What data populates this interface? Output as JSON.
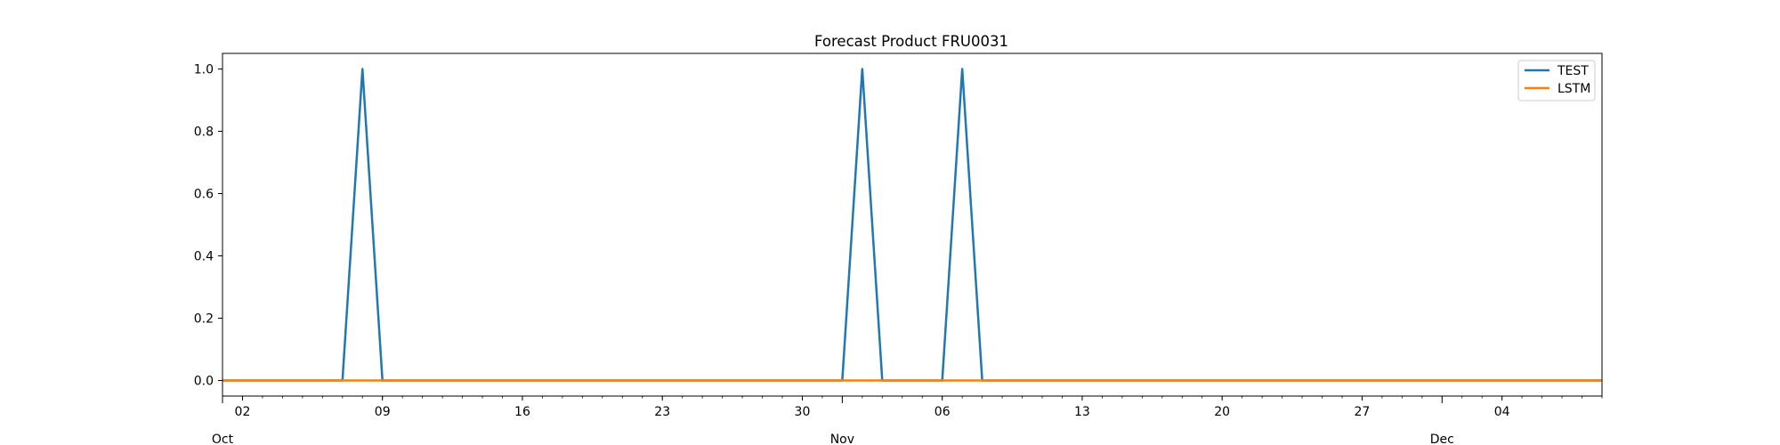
{
  "chart_data": {
    "type": "line",
    "title": "Forecast Product FRU0031",
    "xlabel": "",
    "ylabel": "",
    "x_start": "2023-10-01",
    "x_end": "2023-12-09",
    "ylim": [
      -0.05,
      1.05
    ],
    "y_ticks": [
      "0.0",
      "0.2",
      "0.4",
      "0.6",
      "0.8",
      "1.0"
    ],
    "x_major_ticks": [
      {
        "date": "2023-10-01",
        "label": "Oct"
      },
      {
        "date": "2023-11-01",
        "label": "Nov"
      },
      {
        "date": "2023-12-01",
        "label": "Dec"
      }
    ],
    "x_minor_ticks": [
      {
        "date": "2023-10-02",
        "label": "02"
      },
      {
        "date": "2023-10-09",
        "label": "09"
      },
      {
        "date": "2023-10-16",
        "label": "16"
      },
      {
        "date": "2023-10-23",
        "label": "23"
      },
      {
        "date": "2023-10-30",
        "label": "30"
      },
      {
        "date": "2023-11-06",
        "label": "06"
      },
      {
        "date": "2023-11-13",
        "label": "13"
      },
      {
        "date": "2023-11-20",
        "label": "20"
      },
      {
        "date": "2023-11-27",
        "label": "27"
      },
      {
        "date": "2023-12-04",
        "label": "04"
      }
    ],
    "legend_position": "top-right",
    "grid": false,
    "series": [
      {
        "name": "TEST",
        "color": "#1f77b4",
        "points": [
          [
            "2023-10-01",
            0
          ],
          [
            "2023-10-07",
            0
          ],
          [
            "2023-10-08",
            1
          ],
          [
            "2023-10-09",
            0
          ],
          [
            "2023-11-01",
            0
          ],
          [
            "2023-11-02",
            1
          ],
          [
            "2023-11-03",
            0
          ],
          [
            "2023-11-06",
            0
          ],
          [
            "2023-11-07",
            1
          ],
          [
            "2023-11-08",
            0
          ],
          [
            "2023-12-09",
            0
          ]
        ]
      },
      {
        "name": "LSTM",
        "color": "#ff7f0e",
        "points": [
          [
            "2023-10-01",
            0
          ],
          [
            "2023-12-09",
            0
          ]
        ]
      }
    ]
  }
}
